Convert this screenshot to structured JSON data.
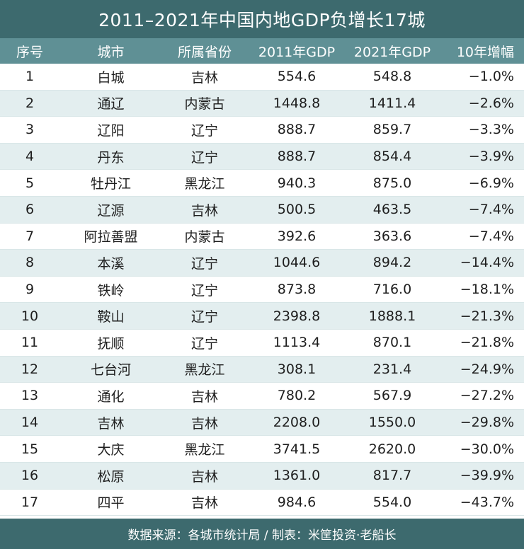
{
  "title": "2011–2021年中国内地GDP负增长17城",
  "headers": [
    "序号",
    "城市",
    "所属省份",
    "2011年GDP",
    "2021年GDP",
    "10年增幅"
  ],
  "rows": [
    [
      "1",
      "白城",
      "吉林",
      "554.6",
      "548.8",
      "−1.0%"
    ],
    [
      "2",
      "通辽",
      "内蒙古",
      "1448.8",
      "1411.4",
      "−2.6%"
    ],
    [
      "3",
      "辽阳",
      "辽宁",
      "888.7",
      "859.7",
      "−3.3%"
    ],
    [
      "4",
      "丹东",
      "辽宁",
      "888.7",
      "854.4",
      "−3.9%"
    ],
    [
      "5",
      "牡丹江",
      "黑龙江",
      "940.3",
      "875.0",
      "−6.9%"
    ],
    [
      "6",
      "辽源",
      "吉林",
      "500.5",
      "463.5",
      "−7.4%"
    ],
    [
      "7",
      "阿拉善盟",
      "内蒙古",
      "392.6",
      "363.6",
      "−7.4%"
    ],
    [
      "8",
      "本溪",
      "辽宁",
      "1044.6",
      "894.2",
      "−14.4%"
    ],
    [
      "9",
      "铁岭",
      "辽宁",
      "873.8",
      "716.0",
      "−18.1%"
    ],
    [
      "10",
      "鞍山",
      "辽宁",
      "2398.8",
      "1888.1",
      "−21.3%"
    ],
    [
      "11",
      "抚顺",
      "辽宁",
      "1113.4",
      "870.1",
      "−21.8%"
    ],
    [
      "12",
      "七台河",
      "黑龙江",
      "308.1",
      "231.4",
      "−24.9%"
    ],
    [
      "13",
      "通化",
      "吉林",
      "780.2",
      "567.9",
      "−27.2%"
    ],
    [
      "14",
      "吉林",
      "吉林",
      "2208.0",
      "1550.0",
      "−29.8%"
    ],
    [
      "15",
      "大庆",
      "黑龙江",
      "3741.5",
      "2620.0",
      "−30.0%"
    ],
    [
      "16",
      "松原",
      "吉林",
      "1361.0",
      "817.7",
      "−39.9%"
    ],
    [
      "17",
      "四平",
      "吉林",
      "984.6",
      "554.0",
      "−43.7%"
    ]
  ],
  "footer": "数据来源：各城市统计局 / 制表：米筐投资·老船长",
  "colors": {
    "title_bg": "#3d6a6e",
    "header_bg": "#5f9095",
    "alt_row": "#e3eeef"
  }
}
